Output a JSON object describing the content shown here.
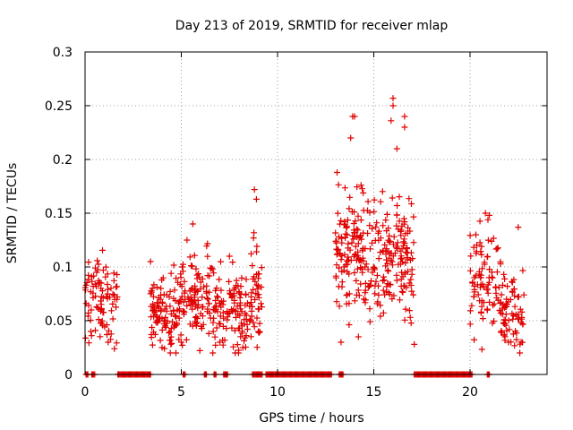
{
  "chart_data": {
    "type": "scatter",
    "title": "Day 213 of 2019, SRMTID for receiver mlap",
    "xlabel": "GPS time / hours",
    "ylabel": "SRMTID / TECUs",
    "xlim": [
      0,
      24
    ],
    "ylim": [
      0,
      0.3
    ],
    "x_ticks": [
      0,
      5,
      10,
      15,
      20
    ],
    "x_tick_labels": [
      "0",
      "5",
      "10",
      "15",
      "20"
    ],
    "y_ticks": [
      0,
      0.05,
      0.1,
      0.15,
      0.2,
      0.25,
      0.3
    ],
    "y_tick_labels": [
      "0",
      "0.05",
      "0.1",
      "0.15",
      "0.2",
      "0.25",
      "0.3"
    ],
    "grid": true,
    "marker": "+",
    "color": "#e00000",
    "series": [
      {
        "name": "SRMTID",
        "clusters": [
          {
            "x_range": [
              0.0,
              1.7
            ],
            "center": 0.068,
            "spread": 0.018,
            "count": 90,
            "outliers": [
              [
                0.3,
                0.04
              ],
              [
                0.6,
                0.095
              ],
              [
                1.2,
                0.03
              ]
            ]
          },
          {
            "x_range": [
              3.4,
              4.8
            ],
            "center": 0.06,
            "spread": 0.017,
            "count": 95,
            "outliers": [
              [
                3.4,
                0.105
              ],
              [
                4.0,
                0.025
              ]
            ]
          },
          {
            "x_range": [
              4.8,
              6.6
            ],
            "center": 0.075,
            "spread": 0.02,
            "count": 110,
            "outliers": [
              [
                5.6,
                0.14
              ],
              [
                5.3,
                0.125
              ],
              [
                5.0,
                0.03
              ]
            ]
          },
          {
            "x_range": [
              6.6,
              8.5
            ],
            "center": 0.06,
            "spread": 0.018,
            "count": 110,
            "outliers": [
              [
                7.5,
                0.11
              ],
              [
                8.2,
                0.025
              ],
              [
                7.0,
                0.03
              ]
            ]
          },
          {
            "x_range": [
              8.5,
              9.2
            ],
            "center": 0.08,
            "spread": 0.025,
            "count": 45,
            "outliers": [
              [
                8.8,
                0.172
              ],
              [
                8.9,
                0.163
              ],
              [
                9.0,
                0.04
              ]
            ]
          },
          {
            "x_range": [
              13.0,
              15.0
            ],
            "center": 0.11,
            "spread": 0.028,
            "count": 150,
            "outliers": [
              [
                13.9,
                0.24
              ],
              [
                14.0,
                0.24
              ],
              [
                13.8,
                0.22
              ],
              [
                13.3,
                0.03
              ],
              [
                14.2,
                0.035
              ]
            ]
          },
          {
            "x_range": [
              15.0,
              17.1
            ],
            "center": 0.11,
            "spread": 0.027,
            "count": 150,
            "outliers": [
              [
                16.0,
                0.257
              ],
              [
                16.0,
                0.25
              ],
              [
                15.9,
                0.236
              ],
              [
                16.6,
                0.24
              ],
              [
                16.6,
                0.23
              ],
              [
                17.1,
                0.028
              ],
              [
                16.2,
                0.21
              ]
            ]
          },
          {
            "x_range": [
              20.0,
              21.5
            ],
            "center": 0.09,
            "spread": 0.022,
            "count": 80,
            "outliers": [
              [
                20.8,
                0.15
              ],
              [
                21.0,
                0.148
              ],
              [
                20.3,
                0.13
              ]
            ]
          },
          {
            "x_range": [
              21.5,
              22.8
            ],
            "center": 0.06,
            "spread": 0.018,
            "count": 80,
            "outliers": [
              [
                22.5,
                0.137
              ],
              [
                22.0,
                0.03
              ]
            ]
          }
        ],
        "zero_segments": [
          [
            0.05,
            0.15
          ],
          [
            0.35,
            0.5
          ],
          [
            1.7,
            3.4
          ],
          [
            5.1,
            5.2
          ],
          [
            6.2,
            6.3
          ],
          [
            6.7,
            6.8
          ],
          [
            7.2,
            7.4
          ],
          [
            8.7,
            9.2
          ],
          [
            9.4,
            12.8
          ],
          [
            13.2,
            13.4
          ],
          [
            17.1,
            20.1
          ],
          [
            20.9,
            21.0
          ]
        ]
      }
    ]
  }
}
